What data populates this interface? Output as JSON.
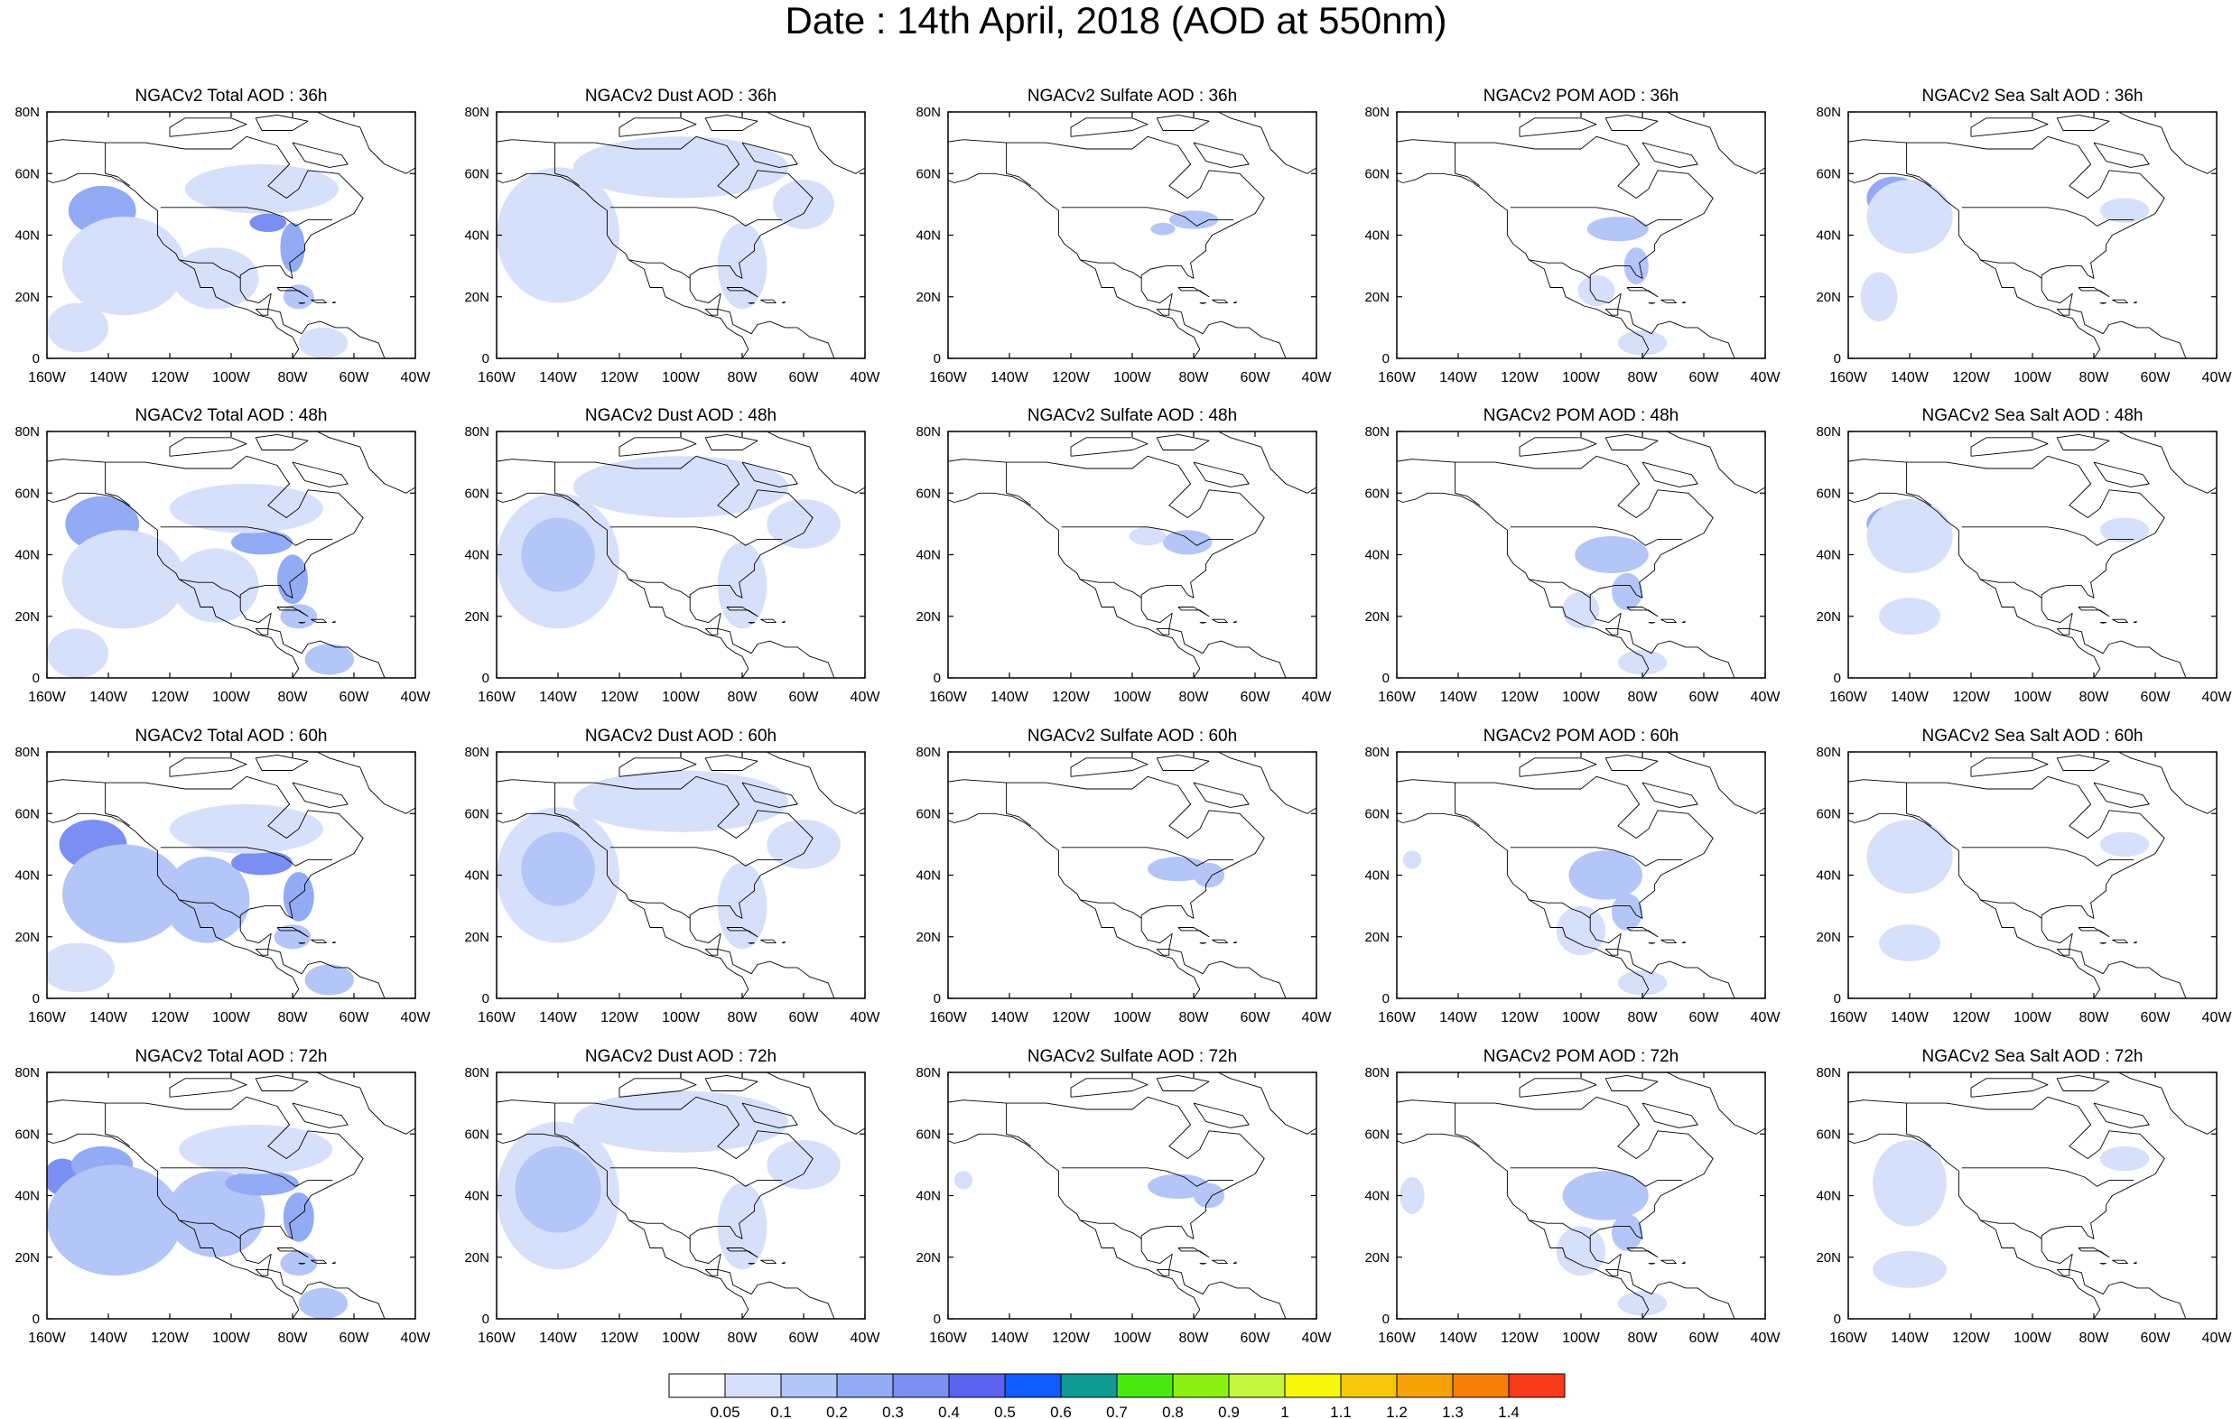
{
  "page": {
    "title": "Date : 14th April, 2018 (AOD at 550nm)"
  },
  "chart_data": {
    "type": "heatmap",
    "grid": {
      "rows": [
        "36h",
        "48h",
        "60h",
        "72h"
      ],
      "columns": [
        "Total",
        "Dust",
        "Sulfate",
        "POM",
        "Sea Salt"
      ]
    },
    "x_axis": {
      "range": [
        -160,
        -40
      ],
      "ticks": [
        -160,
        -140,
        -120,
        -100,
        -80,
        -60,
        -40
      ],
      "tick_labels": [
        "160W",
        "140W",
        "120W",
        "100W",
        "80W",
        "60W",
        "40W"
      ]
    },
    "y_axis": {
      "range": [
        0,
        80
      ],
      "ticks": [
        0,
        20,
        40,
        60,
        80
      ],
      "tick_labels": [
        "0",
        "20N",
        "40N",
        "60N",
        "80N"
      ]
    },
    "panels": [
      [
        "NGACv2 Total AOD : 36h",
        "NGACv2 Dust AOD : 36h",
        "NGACv2 Sulfate AOD : 36h",
        "NGACv2 POM AOD : 36h",
        "NGACv2 Sea Salt AOD : 36h"
      ],
      [
        "NGACv2 Total AOD : 48h",
        "NGACv2 Dust AOD : 48h",
        "NGACv2 Sulfate AOD : 48h",
        "NGACv2 POM AOD : 48h",
        "NGACv2 Sea Salt AOD : 48h"
      ],
      [
        "NGACv2 Total AOD : 60h",
        "NGACv2 Dust AOD : 60h",
        "NGACv2 Sulfate AOD : 60h",
        "NGACv2 POM AOD : 60h",
        "NGACv2 Sea Salt AOD : 60h"
      ],
      [
        "NGACv2 Total AOD : 72h",
        "NGACv2 Dust AOD : 72h",
        "NGACv2 Sulfate AOD : 72h",
        "NGACv2 POM AOD : 72h",
        "NGACv2 Sea Salt  AOD : 72h"
      ]
    ],
    "colorbar": {
      "labels": [
        "0.05",
        "0.1",
        "0.2",
        "0.3",
        "0.4",
        "0.5",
        "0.6",
        "0.7",
        "0.8",
        "0.9",
        "1",
        "1.1",
        "1.2",
        "1.3",
        "1.4"
      ],
      "colors": [
        "#ffffff",
        "#d6e0fa",
        "#b4c5f7",
        "#93aaf4",
        "#7b8ef2",
        "#5c63ee",
        "#0f5cff",
        "#0d9a93",
        "#49e90f",
        "#8df013",
        "#c5f53e",
        "#f7f70c",
        "#f7c50a",
        "#f7a208",
        "#f77e08",
        "#f73b1a"
      ]
    },
    "aod_fields": {
      "Total": {
        "36h": [
          [
            -142,
            48,
            11,
            8,
            3
          ],
          [
            -135,
            30,
            20,
            16,
            1
          ],
          [
            -105,
            26,
            14,
            10,
            1
          ],
          [
            -88,
            44,
            6,
            3,
            4
          ],
          [
            -80,
            36,
            4,
            8,
            3
          ],
          [
            -90,
            55,
            25,
            8,
            1
          ],
          [
            -78,
            20,
            5,
            4,
            2
          ],
          [
            -70,
            5,
            8,
            5,
            1
          ],
          [
            -150,
            10,
            10,
            8,
            1
          ]
        ],
        "48h": [
          [
            -142,
            50,
            12,
            9,
            3
          ],
          [
            -135,
            32,
            20,
            16,
            1
          ],
          [
            -105,
            30,
            14,
            12,
            1
          ],
          [
            -90,
            44,
            10,
            4,
            3
          ],
          [
            -80,
            32,
            5,
            8,
            3
          ],
          [
            -95,
            55,
            25,
            8,
            1
          ],
          [
            -78,
            20,
            6,
            4,
            2
          ],
          [
            -68,
            6,
            8,
            5,
            2
          ],
          [
            -150,
            8,
            10,
            8,
            1
          ]
        ],
        "60h": [
          [
            -145,
            50,
            11,
            8,
            4
          ],
          [
            -135,
            34,
            20,
            16,
            2
          ],
          [
            -108,
            32,
            14,
            14,
            2
          ],
          [
            -90,
            44,
            10,
            4,
            4
          ],
          [
            -78,
            33,
            5,
            8,
            3
          ],
          [
            -95,
            55,
            25,
            8,
            1
          ],
          [
            -80,
            20,
            6,
            4,
            2
          ],
          [
            -68,
            6,
            8,
            5,
            2
          ],
          [
            -150,
            10,
            12,
            8,
            1
          ]
        ],
        "72h": [
          [
            -155,
            46,
            6,
            6,
            4
          ],
          [
            -142,
            50,
            10,
            6,
            3
          ],
          [
            -138,
            32,
            22,
            18,
            2
          ],
          [
            -105,
            34,
            16,
            14,
            2
          ],
          [
            -90,
            44,
            12,
            4,
            3
          ],
          [
            -78,
            33,
            5,
            8,
            3
          ],
          [
            -92,
            55,
            25,
            8,
            1
          ],
          [
            -78,
            18,
            6,
            4,
            2
          ],
          [
            -70,
            5,
            8,
            5,
            2
          ]
        ]
      },
      "Dust": {
        "36h": [
          [
            -140,
            40,
            20,
            22,
            1
          ],
          [
            -100,
            62,
            35,
            10,
            1
          ],
          [
            -80,
            30,
            8,
            14,
            1
          ],
          [
            -60,
            50,
            10,
            8,
            1
          ]
        ],
        "48h": [
          [
            -140,
            38,
            20,
            22,
            1
          ],
          [
            -140,
            40,
            12,
            12,
            2
          ],
          [
            -100,
            62,
            35,
            10,
            1
          ],
          [
            -80,
            30,
            8,
            14,
            1
          ],
          [
            -60,
            50,
            12,
            8,
            1
          ]
        ],
        "60h": [
          [
            -140,
            40,
            20,
            22,
            1
          ],
          [
            -140,
            42,
            12,
            12,
            2
          ],
          [
            -100,
            64,
            35,
            10,
            1
          ],
          [
            -80,
            30,
            8,
            14,
            1
          ],
          [
            -60,
            50,
            12,
            8,
            1
          ]
        ],
        "72h": [
          [
            -140,
            40,
            20,
            24,
            1
          ],
          [
            -140,
            42,
            14,
            14,
            2
          ],
          [
            -100,
            64,
            35,
            10,
            1
          ],
          [
            -80,
            30,
            8,
            14,
            1
          ],
          [
            -60,
            50,
            12,
            8,
            1
          ]
        ]
      },
      "Sulfate": {
        "36h": [
          [
            -80,
            45,
            8,
            3,
            2
          ],
          [
            -90,
            42,
            4,
            2,
            2
          ]
        ],
        "48h": [
          [
            -82,
            44,
            8,
            4,
            2
          ],
          [
            -95,
            46,
            6,
            3,
            1
          ]
        ],
        "60h": [
          [
            -85,
            42,
            10,
            4,
            2
          ],
          [
            -75,
            40,
            5,
            4,
            2
          ]
        ],
        "72h": [
          [
            -85,
            43,
            10,
            4,
            2
          ],
          [
            -75,
            40,
            5,
            4,
            2
          ],
          [
            -155,
            45,
            3,
            3,
            1
          ]
        ]
      },
      "POM": {
        "36h": [
          [
            -88,
            42,
            10,
            4,
            2
          ],
          [
            -82,
            30,
            4,
            6,
            2
          ],
          [
            -80,
            5,
            8,
            4,
            1
          ],
          [
            -95,
            22,
            6,
            5,
            1
          ]
        ],
        "48h": [
          [
            -90,
            40,
            12,
            6,
            2
          ],
          [
            -85,
            28,
            5,
            6,
            2
          ],
          [
            -80,
            5,
            8,
            4,
            1
          ],
          [
            -100,
            22,
            6,
            6,
            1
          ]
        ],
        "60h": [
          [
            -92,
            40,
            12,
            8,
            2
          ],
          [
            -85,
            28,
            5,
            6,
            2
          ],
          [
            -80,
            5,
            8,
            4,
            1
          ],
          [
            -100,
            22,
            8,
            8,
            1
          ],
          [
            -155,
            45,
            3,
            3,
            1
          ]
        ],
        "72h": [
          [
            -92,
            40,
            14,
            8,
            2
          ],
          [
            -85,
            28,
            5,
            6,
            2
          ],
          [
            -80,
            5,
            8,
            4,
            1
          ],
          [
            -100,
            22,
            8,
            8,
            1
          ],
          [
            -155,
            40,
            4,
            6,
            1
          ]
        ]
      },
      "Sea Salt": {
        "36h": [
          [
            -145,
            52,
            9,
            7,
            3
          ],
          [
            -140,
            46,
            14,
            12,
            1
          ],
          [
            -150,
            20,
            6,
            8,
            1
          ],
          [
            -70,
            48,
            8,
            4,
            1
          ]
        ],
        "48h": [
          [
            -145,
            50,
            9,
            6,
            3
          ],
          [
            -140,
            46,
            14,
            12,
            1
          ],
          [
            -140,
            20,
            10,
            6,
            1
          ],
          [
            -70,
            48,
            8,
            4,
            1
          ]
        ],
        "60h": [
          [
            -138,
            50,
            9,
            7,
            3
          ],
          [
            -140,
            46,
            14,
            12,
            1
          ],
          [
            -140,
            18,
            10,
            6,
            1
          ],
          [
            -70,
            50,
            8,
            4,
            1
          ]
        ],
        "72h": [
          [
            -140,
            48,
            7,
            8,
            3
          ],
          [
            -140,
            44,
            12,
            14,
            1
          ],
          [
            -140,
            16,
            12,
            6,
            1
          ],
          [
            -70,
            52,
            8,
            4,
            1
          ]
        ]
      }
    }
  }
}
